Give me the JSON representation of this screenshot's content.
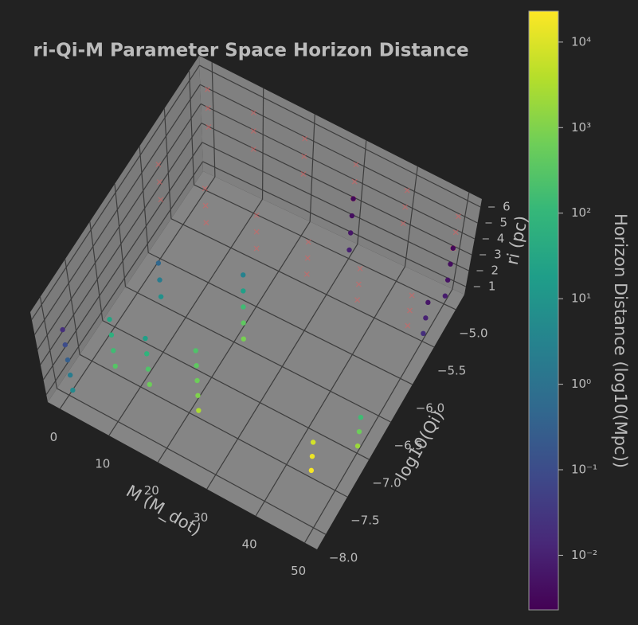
{
  "chart_data": {
    "type": "scatter3d",
    "title": "ri-Qi-M Parameter Space Horizon Distance",
    "xlabel": "M (M_dot)",
    "ylabel": "log10(Qi)",
    "zlabel": "ri (pc)",
    "colorbar_label": "Horizon Distance (log10(Mpc))",
    "xlim": [
      -2.5,
      52.5
    ],
    "ylim": [
      -8.2,
      -4.8
    ],
    "zlim": [
      0.5,
      6.5
    ],
    "xticks": [
      0,
      10,
      20,
      30,
      40,
      50
    ],
    "yticks": [
      {
        "value": -5.0,
        "label": "−5.0"
      },
      {
        "value": -5.5,
        "label": "−5.5"
      },
      {
        "value": -6.0,
        "label": "−6.0"
      },
      {
        "value": -6.5,
        "label": "−6.5"
      },
      {
        "value": -7.0,
        "label": "−7.0"
      },
      {
        "value": -7.5,
        "label": "−7.5"
      },
      {
        "value": -8.0,
        "label": "−8.0"
      }
    ],
    "zticks": [
      1,
      2,
      3,
      4,
      5,
      6
    ],
    "grid": true,
    "cmap": "viridis",
    "cscale": "log",
    "clim": [
      0.0023,
      23000
    ],
    "cticks": [
      {
        "value": 0.01,
        "label": "10⁻²"
      },
      {
        "value": 0.1,
        "label": "10⁻¹"
      },
      {
        "value": 1,
        "label": "10⁰"
      },
      {
        "value": 10,
        "label": "10¹"
      },
      {
        "value": 100,
        "label": "10²"
      },
      {
        "value": 1000,
        "label": "10³"
      },
      {
        "value": 10000,
        "label": "10⁴"
      }
    ],
    "points": {
      "x": [
        1,
        1,
        1,
        1,
        1,
        5,
        5,
        5,
        5,
        5,
        5,
        5,
        12,
        12,
        12,
        12,
        22,
        22,
        22,
        22,
        22,
        22,
        22,
        22,
        22,
        22,
        30,
        30,
        30,
        30,
        50,
        50,
        50,
        50,
        50,
        50,
        50,
        45,
        45,
        45,
        50,
        50,
        50
      ],
      "y": [
        -8,
        -8,
        -8,
        -8,
        -8,
        -7.5,
        -7.5,
        -7.5,
        -7.5,
        -6.5,
        -6.5,
        -6.5,
        -7.5,
        -7.5,
        -7.5,
        -7.5,
        -7.5,
        -7.5,
        -7.5,
        -7.5,
        -7.5,
        -6.5,
        -6.5,
        -6.5,
        -6.5,
        -6.5,
        -5,
        -5,
        -5,
        -5,
        -5,
        -5,
        -5,
        -5,
        -5.5,
        -5.5,
        -5.5,
        -7.5,
        -7.5,
        -7.5,
        -7,
        -7,
        -7
      ],
      "z": [
        1,
        2,
        3,
        4,
        5,
        1,
        2,
        3,
        4,
        1,
        2,
        3,
        1,
        2,
        3,
        4,
        1,
        2,
        3,
        4,
        5,
        1,
        2,
        3,
        4,
        5,
        1,
        2,
        3,
        4,
        1,
        2,
        3,
        4,
        1,
        2,
        3,
        1,
        2,
        3,
        1,
        2,
        3
      ],
      "values": [
        5,
        2,
        0.3,
        0.1,
        0.02,
        300,
        150,
        60,
        30,
        8,
        2,
        0.5,
        600,
        250,
        80,
        20,
        3000,
        1000,
        600,
        400,
        250,
        800,
        400,
        150,
        20,
        3,
        0.01,
        0.006,
        0.004,
        0.003,
        0.008,
        0.005,
        0.004,
        0.003,
        0.02,
        0.01,
        0.006,
        20000,
        15000,
        8000,
        2000,
        600,
        150
      ]
    },
    "undetected": {
      "marker": "x",
      "color": "#e06060",
      "x": [
        1,
        1,
        1,
        1,
        1,
        1,
        10,
        10,
        10,
        10,
        10,
        10,
        20,
        20,
        20,
        20,
        20,
        20,
        30,
        30,
        30,
        30,
        30,
        30,
        40,
        40,
        40,
        40,
        40,
        40,
        50,
        50,
        50,
        50,
        50,
        50
      ],
      "y": [
        -5,
        -5,
        -5,
        -6,
        -6,
        -6,
        -5,
        -5,
        -5,
        -6,
        -6,
        -6,
        -5,
        -5,
        -5,
        -6,
        -6,
        -6,
        -5,
        -5,
        -5,
        -6,
        -6,
        -6,
        -5,
        -5,
        -5,
        -6,
        -6,
        -6,
        -5,
        -5,
        -5,
        -6,
        -6,
        -6
      ],
      "z": [
        4,
        5,
        6,
        4,
        5,
        6,
        4,
        5,
        6,
        4,
        5,
        6,
        4,
        5,
        6,
        4,
        5,
        6,
        4,
        5,
        6,
        4,
        5,
        6,
        4,
        5,
        6,
        4,
        5,
        6,
        4,
        5,
        6,
        4,
        5,
        6
      ]
    }
  }
}
